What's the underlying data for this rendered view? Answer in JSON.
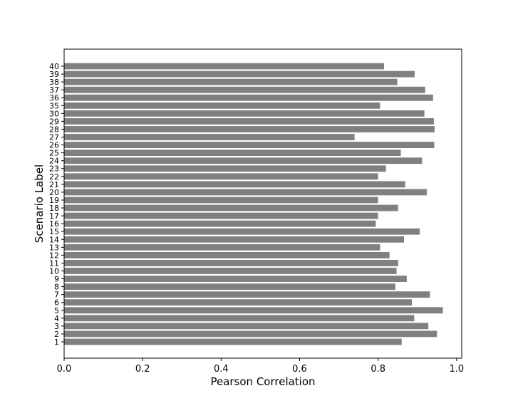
{
  "chart_data": {
    "type": "bar",
    "orientation": "horizontal",
    "title": "",
    "xlabel": "Pearson Correlation",
    "ylabel": "Scenario Label",
    "xlim": [
      0.0,
      1.0
    ],
    "xticks": [
      "0.0",
      "0.2",
      "0.4",
      "0.6",
      "0.8",
      "1.0"
    ],
    "grid": false,
    "bar_color": "#808080",
    "categories": [
      "1",
      "2",
      "3",
      "4",
      "5",
      "6",
      "7",
      "8",
      "9",
      "10",
      "11",
      "12",
      "13",
      "14",
      "15",
      "16",
      "17",
      "18",
      "19",
      "20",
      "21",
      "22",
      "23",
      "24",
      "25",
      "26",
      "27",
      "28",
      "29",
      "30",
      "35",
      "36",
      "37",
      "38",
      "39",
      "40"
    ],
    "values": [
      0.86,
      0.95,
      0.928,
      0.892,
      0.965,
      0.886,
      0.932,
      0.844,
      0.873,
      0.847,
      0.851,
      0.829,
      0.805,
      0.866,
      0.906,
      0.794,
      0.8,
      0.851,
      0.8,
      0.924,
      0.869,
      0.8,
      0.82,
      0.912,
      0.858,
      0.943,
      0.74,
      0.944,
      0.942,
      0.918,
      0.805,
      0.94,
      0.92,
      0.849,
      0.893,
      0.815
    ]
  }
}
